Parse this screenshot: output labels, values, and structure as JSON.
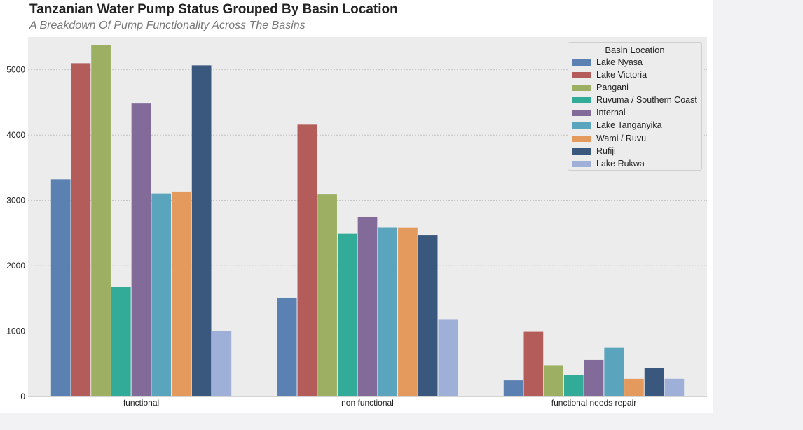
{
  "chart_data": {
    "type": "bar",
    "title": "Tanzanian Water Pump Status Grouped By Basin Location",
    "subtitle": "A Breakdown Of Pump Functionality Across The Basins",
    "xlabel": "",
    "ylabel": "",
    "categories": [
      "functional",
      "non functional",
      "functional needs repair"
    ],
    "ylim": [
      0,
      5500
    ],
    "yticks": [
      0,
      1000,
      2000,
      3000,
      4000,
      5000
    ],
    "grid": true,
    "legend": {
      "title": "Basin Location",
      "placement": "top-right"
    },
    "series": [
      {
        "name": "Lake Nyasa",
        "color": "#5b80b2",
        "values": [
          3324,
          1509,
          245
        ]
      },
      {
        "name": "Lake Victoria",
        "color": "#b35c5a",
        "values": [
          5100,
          4159,
          989
        ]
      },
      {
        "name": "Pangani",
        "color": "#9caf62",
        "values": [
          5372,
          3091,
          477
        ]
      },
      {
        "name": "Ruvuma / Southern Coast",
        "color": "#33ab99",
        "values": [
          1670,
          2497,
          326
        ]
      },
      {
        "name": "Internal",
        "color": "#826a99",
        "values": [
          4482,
          2746,
          557
        ]
      },
      {
        "name": "Lake Tanganyika",
        "color": "#5aa4bd",
        "values": [
          3107,
          2584,
          742
        ]
      },
      {
        "name": "Wami / Ruvu",
        "color": "#e49a5d",
        "values": [
          3136,
          2582,
          269
        ]
      },
      {
        "name": "Rufiji",
        "color": "#3a577d",
        "values": [
          5068,
          2471,
          437
        ]
      },
      {
        "name": "Lake Rukwa",
        "color": "#9eb0d8",
        "values": [
          1000,
          1183,
          270
        ]
      }
    ]
  }
}
